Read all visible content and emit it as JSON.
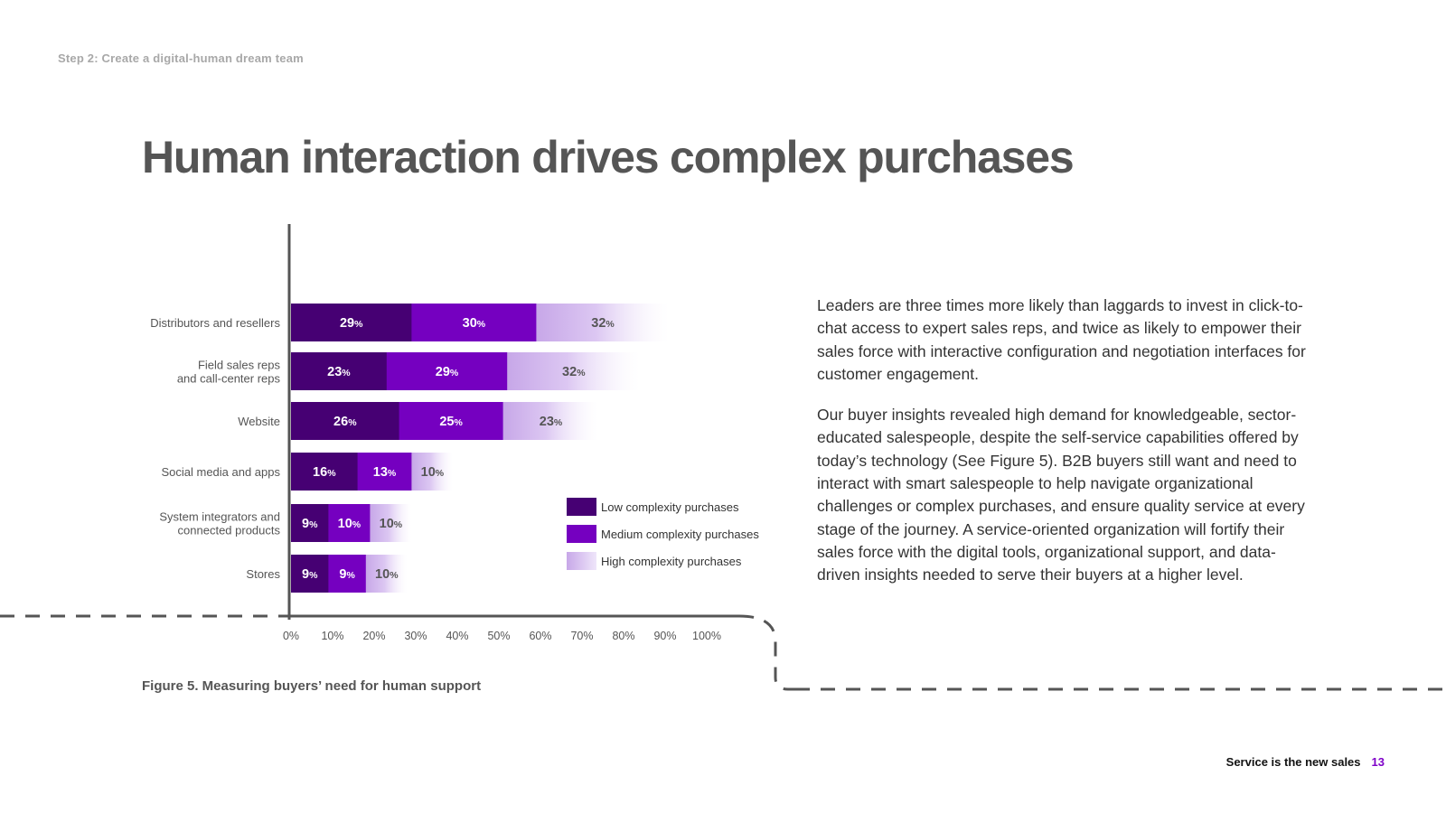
{
  "header": {
    "step": "Step 2: Create a digital-human dream team",
    "title": "Human interaction drives complex purchases"
  },
  "figure": {
    "caption": "Figure 5. Measuring buyers’ need for human support"
  },
  "chart_data": {
    "type": "bar",
    "orientation": "horizontal",
    "stacked": true,
    "categories": [
      "Distributors and resellers",
      "Field sales reps and call-center reps",
      "Website",
      "Social media and apps",
      "System integrators and connected products",
      "Stores"
    ],
    "category_lines": [
      [
        "Distributors and resellers"
      ],
      [
        "Field sales reps",
        "and call-center reps"
      ],
      [
        "Website"
      ],
      [
        "Social media and apps"
      ],
      [
        "System integrators and",
        "connected products"
      ],
      [
        "Stores"
      ]
    ],
    "series": [
      {
        "name": "Low complexity purchases",
        "color": "#460073",
        "values": [
          29,
          23,
          26,
          16,
          9,
          9
        ]
      },
      {
        "name": "Medium complexity purchases",
        "color": "#7500c0",
        "values": [
          30,
          29,
          25,
          13,
          10,
          9
        ]
      },
      {
        "name": "High complexity purchases",
        "color": "#c7a7e8",
        "values": [
          32,
          32,
          23,
          10,
          10,
          10
        ]
      }
    ],
    "value_suffix": "%",
    "xlim": [
      0,
      100
    ],
    "xticks": [
      "0%",
      "10%",
      "20%",
      "30%",
      "40%",
      "50%",
      "60%",
      "70%",
      "80%",
      "90%",
      "100%"
    ],
    "legend_position": "bottom-right"
  },
  "body": {
    "paragraphs": [
      "Leaders are three times more likely than laggards to invest in click-to-chat access to expert sales reps, and twice as likely to empower their sales force with interactive configuration and negotiation interfaces for customer engagement.",
      "Our buyer insights revealed high demand for knowledgeable, sector-educated salespeople, despite the self-service capabilities offered by today’s technology (See Figure 5). B2B buyers still want and need to interact with smart salespeople to help navigate organizational challenges or complex purchases, and ensure quality service at every stage of the journey. A service-oriented organization will fortify their sales force with the digital tools, organizational support, and data-driven insights needed to serve their buyers at a higher level."
    ]
  },
  "footer": {
    "title": "Service is the new sales",
    "page": "13"
  }
}
